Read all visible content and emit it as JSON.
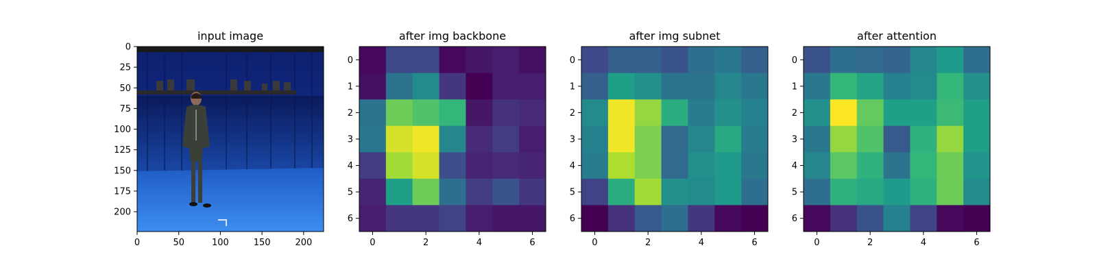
{
  "chart_data": [
    {
      "type": "image",
      "title": "input image",
      "image_description": "person standing in a blue-screen motion capture studio with camera rig overhead",
      "x_ticks": [
        0,
        50,
        100,
        150,
        200
      ],
      "y_ticks": [
        0,
        25,
        50,
        75,
        100,
        125,
        150,
        175,
        200
      ],
      "xlim": [
        0,
        224
      ],
      "ylim": [
        224,
        0
      ]
    },
    {
      "type": "heatmap",
      "title": "after img backbone",
      "colormap": "viridis",
      "x_ticks": [
        0,
        2,
        4,
        6
      ],
      "y_ticks": [
        0,
        1,
        2,
        3,
        4,
        5,
        6
      ],
      "values": [
        [
          0.02,
          0.22,
          0.22,
          0.02,
          0.06,
          0.08,
          0.04
        ],
        [
          0.04,
          0.38,
          0.48,
          0.16,
          0.0,
          0.08,
          0.08
        ],
        [
          0.38,
          0.78,
          0.72,
          0.66,
          0.06,
          0.14,
          0.12
        ],
        [
          0.4,
          0.94,
          0.98,
          0.46,
          0.12,
          0.18,
          0.08
        ],
        [
          0.18,
          0.86,
          0.94,
          0.24,
          0.1,
          0.12,
          0.1
        ],
        [
          0.1,
          0.56,
          0.78,
          0.36,
          0.18,
          0.26,
          0.16
        ],
        [
          0.08,
          0.16,
          0.16,
          0.2,
          0.08,
          0.06,
          0.06
        ]
      ]
    },
    {
      "type": "heatmap",
      "title": "after img subnet",
      "colormap": "viridis",
      "x_ticks": [
        0,
        2,
        4,
        6
      ],
      "y_ticks": [
        0,
        1,
        2,
        3,
        4,
        5,
        6
      ],
      "values": [
        [
          0.22,
          0.3,
          0.3,
          0.26,
          0.36,
          0.4,
          0.3
        ],
        [
          0.3,
          0.56,
          0.5,
          0.38,
          0.38,
          0.46,
          0.4
        ],
        [
          0.48,
          0.98,
          0.84,
          0.62,
          0.42,
          0.5,
          0.44
        ],
        [
          0.44,
          0.98,
          0.8,
          0.34,
          0.46,
          0.6,
          0.42
        ],
        [
          0.42,
          0.88,
          0.8,
          0.34,
          0.5,
          0.54,
          0.4
        ],
        [
          0.2,
          0.62,
          0.86,
          0.5,
          0.48,
          0.54,
          0.36
        ],
        [
          0.0,
          0.14,
          0.28,
          0.36,
          0.16,
          0.02,
          0.0
        ]
      ]
    },
    {
      "type": "heatmap",
      "title": "after attention",
      "colormap": "viridis",
      "x_ticks": [
        0,
        2,
        4,
        6
      ],
      "y_ticks": [
        0,
        1,
        2,
        3,
        4,
        5,
        6
      ],
      "values": [
        [
          0.26,
          0.36,
          0.34,
          0.32,
          0.46,
          0.54,
          0.36
        ],
        [
          0.4,
          0.66,
          0.58,
          0.44,
          0.48,
          0.66,
          0.5
        ],
        [
          0.5,
          1.0,
          0.76,
          0.56,
          0.56,
          0.68,
          0.56
        ],
        [
          0.4,
          0.84,
          0.72,
          0.28,
          0.64,
          0.84,
          0.56
        ],
        [
          0.46,
          0.74,
          0.64,
          0.38,
          0.66,
          0.78,
          0.52
        ],
        [
          0.36,
          0.64,
          0.6,
          0.54,
          0.64,
          0.78,
          0.48
        ],
        [
          0.02,
          0.14,
          0.26,
          0.44,
          0.2,
          0.02,
          0.0
        ]
      ]
    }
  ]
}
